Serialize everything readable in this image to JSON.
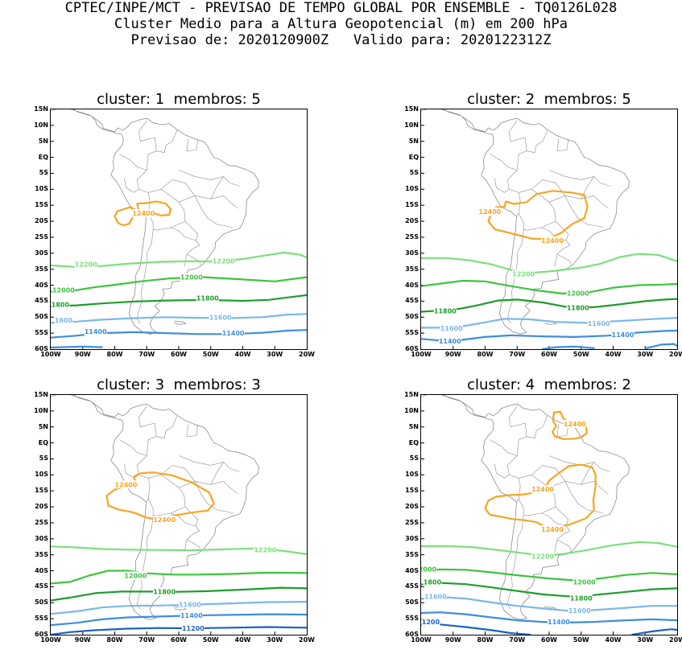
{
  "header": {
    "line1": "CPTEC/INPE/MCT - PREVISAO DE TEMPO GLOBAL POR ENSEMBLE - TQ0126L028",
    "line2": "Cluster Medio para a Altura Geopotencial (m) em 200 hPa",
    "line3": "Previsao de: 2020120900Z   Valido para: 2020122312Z"
  },
  "colors": {
    "c12400": "#f5a623",
    "c12200": "#7be07b",
    "c12000": "#3cc43c",
    "c11800": "#1e9e2a",
    "c11600": "#7ab8ea",
    "c11400": "#3b8ee0",
    "c11200": "#1a62c4",
    "coast": "#8c8c8c"
  },
  "axes": {
    "lat_labels": [
      "15N",
      "10N",
      "5N",
      "EQ",
      "5S",
      "10S",
      "15S",
      "20S",
      "25S",
      "30S",
      "35S",
      "40S",
      "45S",
      "50S",
      "55S",
      "60S"
    ],
    "lon_labels": [
      "100W",
      "90W",
      "80W",
      "70W",
      "60W",
      "50W",
      "40W",
      "30W",
      "20W"
    ],
    "lat_range": [
      15,
      -60
    ],
    "lon_range": [
      -100,
      -20
    ]
  },
  "panels": [
    {
      "title": "cluster: 1  membros: 5",
      "labels": [
        {
          "text": "12400",
          "lon": -71,
          "lat": -17.5,
          "level": "c12400"
        },
        {
          "text": "12200",
          "lon": -89,
          "lat": -33.5,
          "level": "c12200"
        },
        {
          "text": "12200",
          "lon": -46,
          "lat": -32.5,
          "level": "c12200"
        },
        {
          "text": "12000",
          "lon": -56,
          "lat": -37.5,
          "level": "c12000"
        },
        {
          "text": "12000",
          "lon": -96,
          "lat": -41.5,
          "level": "c12000"
        },
        {
          "text": "1800",
          "lon": -97,
          "lat": -46,
          "level": "c11800"
        },
        {
          "text": "11800",
          "lon": -51,
          "lat": -44,
          "level": "c11800"
        },
        {
          "text": "1600",
          "lon": -96,
          "lat": -51,
          "level": "c11600"
        },
        {
          "text": "11600",
          "lon": -47,
          "lat": -50,
          "level": "c11600"
        },
        {
          "text": "11400",
          "lon": -86,
          "lat": -54.5,
          "level": "c11400"
        },
        {
          "text": "11400",
          "lon": -43,
          "lat": -55,
          "level": "c11400"
        }
      ]
    },
    {
      "title": "cluster: 2  membros: 5",
      "labels": [
        {
          "text": "12400",
          "lon": -78.5,
          "lat": -17,
          "level": "c12400"
        },
        {
          "text": "12400",
          "lon": -59,
          "lat": -26,
          "level": "c12400"
        },
        {
          "text": "12200",
          "lon": -68,
          "lat": -36.5,
          "level": "c12200"
        },
        {
          "text": "12000",
          "lon": -51,
          "lat": -42.5,
          "level": "c12000"
        },
        {
          "text": "11800",
          "lon": -92.5,
          "lat": -48,
          "level": "c11800"
        },
        {
          "text": "11800",
          "lon": -51,
          "lat": -47,
          "level": "c11800"
        },
        {
          "text": "11600",
          "lon": -90.5,
          "lat": -53.5,
          "level": "c11600"
        },
        {
          "text": "11600",
          "lon": -44.5,
          "lat": -52,
          "level": "c11600"
        },
        {
          "text": "11400",
          "lon": -91,
          "lat": -57.5,
          "level": "c11400"
        },
        {
          "text": "11400",
          "lon": -37,
          "lat": -55.5,
          "level": "c11400"
        }
      ]
    },
    {
      "title": "cluster: 3  membros: 3",
      "labels": [
        {
          "text": "12400",
          "lon": -76.5,
          "lat": -13,
          "level": "c12400"
        },
        {
          "text": "12400",
          "lon": -64.5,
          "lat": -24,
          "level": "c12400"
        },
        {
          "text": "12200",
          "lon": -33,
          "lat": -33.5,
          "level": "c12200"
        },
        {
          "text": "12000",
          "lon": -73.5,
          "lat": -41.5,
          "level": "c12000"
        },
        {
          "text": "11800",
          "lon": -64.5,
          "lat": -46.5,
          "level": "c11800"
        },
        {
          "text": "11600",
          "lon": -56.5,
          "lat": -50.5,
          "level": "c11600"
        },
        {
          "text": "11400",
          "lon": -56,
          "lat": -54,
          "level": "c11400"
        },
        {
          "text": "11200",
          "lon": -55.5,
          "lat": -58,
          "level": "c11200"
        }
      ]
    },
    {
      "title": "cluster: 4  membros: 2",
      "labels": [
        {
          "text": "12400",
          "lon": -52,
          "lat": 6,
          "level": "c12400"
        },
        {
          "text": "12400",
          "lon": -62,
          "lat": -14.5,
          "level": "c12400"
        },
        {
          "text": "12400",
          "lon": -59,
          "lat": -27,
          "level": "c12400"
        },
        {
          "text": "12200",
          "lon": -62,
          "lat": -35.5,
          "level": "c12200"
        },
        {
          "text": "2000",
          "lon": -98,
          "lat": -39.5,
          "level": "c12000"
        },
        {
          "text": "12000",
          "lon": -49,
          "lat": -43.5,
          "level": "c12000"
        },
        {
          "text": "1800",
          "lon": -96.5,
          "lat": -43.5,
          "level": "c11800"
        },
        {
          "text": "11800",
          "lon": -50,
          "lat": -48.5,
          "level": "c11800"
        },
        {
          "text": "11600",
          "lon": -95.5,
          "lat": -48,
          "level": "c11600"
        },
        {
          "text": "11600",
          "lon": -50.5,
          "lat": -52.5,
          "level": "c11600"
        },
        {
          "text": "11400",
          "lon": -57,
          "lat": -56,
          "level": "c11400"
        },
        {
          "text": "1200",
          "lon": -97,
          "lat": -56,
          "level": "c11200"
        }
      ]
    }
  ]
}
